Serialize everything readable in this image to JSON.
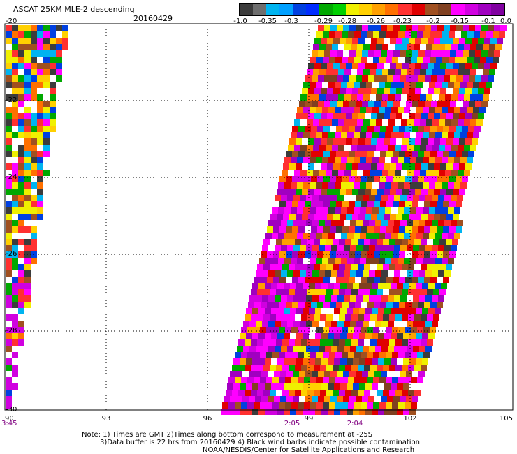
{
  "header": {
    "title": "ASCAT 25KM MLE-2 descending",
    "date": "20160429"
  },
  "colorbar": {
    "labels": [
      "-1.0",
      "-0.35",
      "-0.3",
      "-0.29",
      "-0.28",
      "-0.26",
      "-0.23",
      "-0.2",
      "-0.15",
      "-0.1",
      "0.0"
    ],
    "colors": [
      "#3c3c3c",
      "#6e6e6e",
      "#00b4f0",
      "#00a0ff",
      "#0040e0",
      "#002cff",
      "#00a800",
      "#00d000",
      "#f0f000",
      "#ffd000",
      "#ffa000",
      "#ff7000",
      "#ff3030",
      "#e00000",
      "#a05020",
      "#804020",
      "#ff00ff",
      "#d000e0",
      "#a000c0",
      "#8000a0"
    ]
  },
  "axes": {
    "y_ticks": [
      "-20",
      "-22",
      "-24",
      "-26",
      "-28",
      "-30"
    ],
    "x_ticks": [
      "90",
      "93",
      "96",
      "99",
      "102",
      "105"
    ]
  },
  "times": [
    {
      "label": "3:45",
      "color": "#800080"
    },
    {
      "label": "2:05",
      "color": "#800080"
    },
    {
      "label": "2:04",
      "color": "#800080"
    }
  ],
  "notes": {
    "line1": "Note: 1) Times are GMT 2)Times along bottom correspond to measurement at -25S",
    "line2": "3)Data buffer is 22 hrs from 20160429 4) Black wind barbs indicate possible contamination",
    "line3": "NOAA/NESDIS/Center for Satellite Applications and Research"
  }
}
